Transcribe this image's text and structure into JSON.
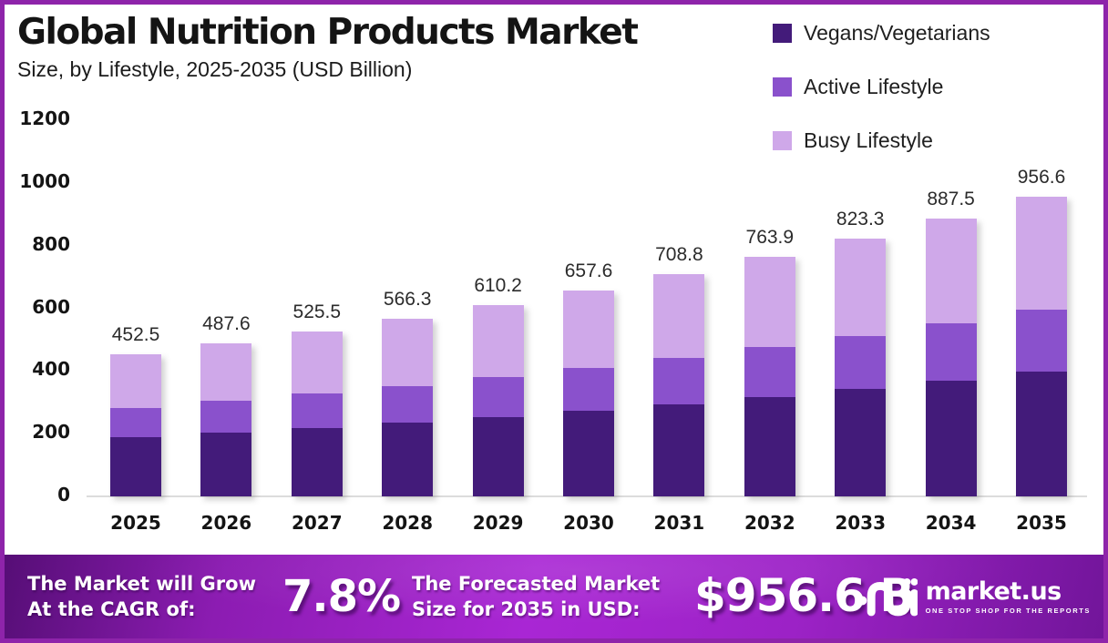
{
  "header": {
    "title": "Global Nutrition Products Market",
    "subtitle": "Size, by Lifestyle, 2025-2035 (USD Billion)"
  },
  "legend": [
    {
      "label": "Vegans/Vegetarians",
      "color": "#431b7a"
    },
    {
      "label": "Active Lifestyle",
      "color": "#8a51cc"
    },
    {
      "label": "Busy Lifestyle",
      "color": "#cfa8e9"
    }
  ],
  "chart_data": {
    "type": "bar",
    "stacked": true,
    "title": "Global Nutrition Products Market Size, by Lifestyle, 2025-2035 (USD Billion)",
    "categories": [
      "2025",
      "2026",
      "2027",
      "2028",
      "2029",
      "2030",
      "2031",
      "2032",
      "2033",
      "2034",
      "2035"
    ],
    "series": [
      {
        "name": "Vegans/Vegetarians",
        "color": "#431b7a",
        "values": [
          188.0,
          202.4,
          218.1,
          235.0,
          253.2,
          272.9,
          294.2,
          317.0,
          341.7,
          368.3,
          397.0
        ]
      },
      {
        "name": "Active Lifestyle",
        "color": "#8a51cc",
        "values": [
          94.0,
          101.3,
          109.2,
          117.7,
          126.8,
          136.7,
          147.3,
          158.8,
          171.1,
          184.4,
          198.8
        ]
      },
      {
        "name": "Busy Lifestyle",
        "color": "#cfa8e9",
        "values": [
          170.5,
          183.9,
          198.2,
          213.6,
          230.2,
          248.0,
          267.3,
          288.1,
          310.5,
          334.8,
          360.8
        ]
      }
    ],
    "totals": [
      452.5,
      487.6,
      525.5,
      566.3,
      610.2,
      657.6,
      708.8,
      763.9,
      823.3,
      887.5,
      956.6
    ],
    "total_labels": [
      "452.5",
      "487.6",
      "525.5",
      "566.3",
      "610.2",
      "657.6",
      "708.8",
      "763.9",
      "823.3",
      "887.5",
      "956.6"
    ],
    "yticks": [
      0,
      200,
      400,
      600,
      800,
      1000,
      1200
    ],
    "ylim": [
      0,
      1200
    ],
    "xlabel": "",
    "ylabel": "",
    "grid": false,
    "legend_position": "top-right"
  },
  "footer": {
    "cagr_label_line1": "The Market will Grow",
    "cagr_label_line2": "At the CAGR of:",
    "cagr_value": "7.8%",
    "forecast_label_line1": "The Forecasted Market",
    "forecast_label_line2": "Size for 2035 in USD:",
    "forecast_value": "$956.6 B",
    "brand": "market.us",
    "brand_tagline": "ONE STOP SHOP FOR THE REPORTS"
  },
  "colors": {
    "border": "#8e24aa",
    "background": "#ffffff",
    "baseline": "#dcdcdc",
    "text": "#141414",
    "banner_left": "#560e76",
    "banner_mid": "#a926d4",
    "banner_right": "#72159a",
    "banner_text": "#ffffff"
  }
}
